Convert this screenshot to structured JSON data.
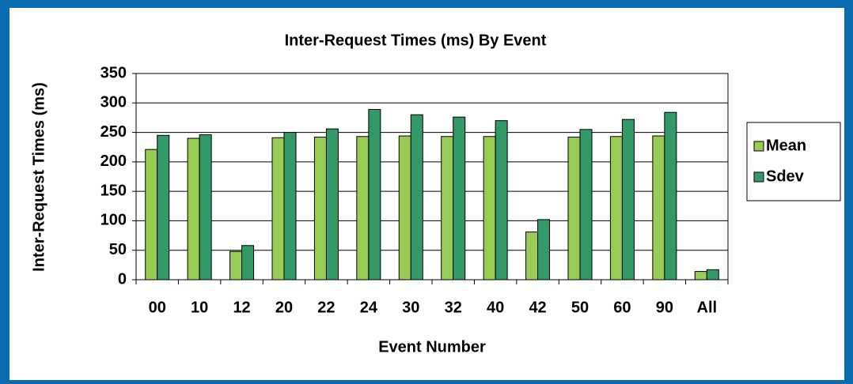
{
  "chart_data": {
    "type": "bar",
    "title": "Inter-Request Times (ms) By Event",
    "x_label": "Event Number",
    "y_label": "Inter-Request Times (ms)",
    "categories": [
      "00",
      "10",
      "12",
      "20",
      "22",
      "24",
      "30",
      "32",
      "40",
      "42",
      "50",
      "60",
      "90",
      "All"
    ],
    "series": [
      {
        "name": "Mean",
        "color": "#99cc55",
        "values": [
          221,
          240,
          48,
          241,
          242,
          243,
          244,
          243,
          243,
          81,
          242,
          243,
          244,
          14
        ]
      },
      {
        "name": "Sdev",
        "color": "#339966",
        "values": [
          245,
          246,
          58,
          250,
          256,
          289,
          280,
          276,
          270,
          102,
          255,
          272,
          284,
          17
        ]
      }
    ],
    "ylim": [
      0,
      350
    ],
    "yticks": [
      0,
      50,
      100,
      150,
      200,
      250,
      300,
      350
    ],
    "grid": true,
    "legend": "right"
  }
}
